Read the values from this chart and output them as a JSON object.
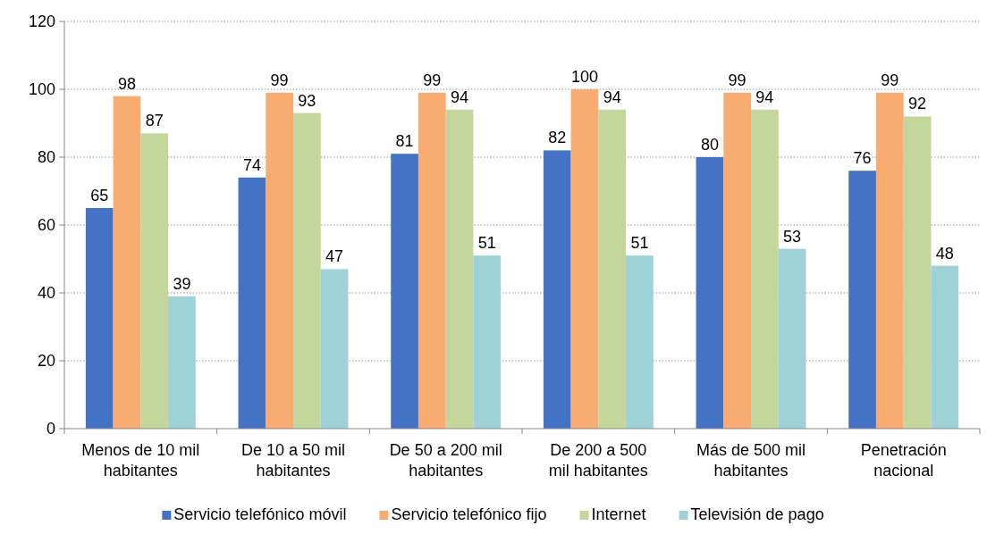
{
  "chart_data": {
    "type": "bar",
    "categories": [
      "Menos de 10 mil habitantes",
      "De 10 a 50 mil habitantes",
      "De 50 a 200 mil habitantes",
      "De 200 a 500 mil habitantes",
      "Más de 500 mil habitantes",
      "Penetración nacional"
    ],
    "series": [
      {
        "name": "Servicio telefónico móvil",
        "color": "#4472c4",
        "values": [
          65,
          74,
          81,
          82,
          80,
          76
        ]
      },
      {
        "name": "Servicio telefónico fijo",
        "color": "#f8ac72",
        "values": [
          98,
          99,
          99,
          100,
          99,
          99
        ]
      },
      {
        "name": "Internet",
        "color": "#c3d69b",
        "values": [
          87,
          93,
          94,
          94,
          94,
          92
        ]
      },
      {
        "name": "Televisión de pago",
        "color": "#9fd2d7",
        "values": [
          39,
          47,
          51,
          51,
          53,
          48
        ]
      }
    ],
    "ylim": [
      0,
      120
    ],
    "yticks": [
      0,
      20,
      40,
      60,
      80,
      100,
      120
    ],
    "grid": "y",
    "legend": "bottom",
    "data_labels": true
  }
}
